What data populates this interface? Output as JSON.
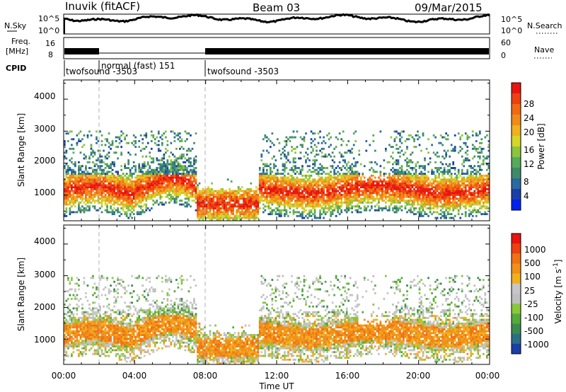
{
  "header": {
    "station": "Inuvik (fitACF)",
    "beam": "Beam 03",
    "date": "09/Mar/2015"
  },
  "sky_panel": {
    "left_label": "N.Sky",
    "right_label": "N.Search",
    "left_ticks": [
      "10^5",
      "10^0"
    ],
    "right_ticks": [
      "10^5",
      "10^0"
    ]
  },
  "freq_panel": {
    "left_label_1": "Freq.",
    "left_label_2": "[MHz]",
    "right_label": "Nave",
    "left_ticks": [
      "16",
      "8"
    ],
    "right_ticks": [
      "60",
      "0"
    ]
  },
  "cpid": {
    "label": "CPID",
    "segments": [
      {
        "start": 0.0,
        "end": 2.0,
        "text": "twofsound -3503"
      },
      {
        "start": 2.0,
        "end": 8.0,
        "text": "normal (fast) 151"
      },
      {
        "start": 8.0,
        "end": 24.0,
        "text": "twofsound -3503"
      }
    ]
  },
  "chart_data": [
    {
      "type": "heatmap",
      "name": "power",
      "ylabel": "Slant Range [km]",
      "xlim": [
        0,
        24
      ],
      "ylim": [
        200,
        4600
      ],
      "yticks": [
        "1000",
        "2000",
        "3000",
        "4000"
      ],
      "colorbar": {
        "label": "Power [dB]",
        "ticks": [
          "4",
          "8",
          "12",
          "16",
          "20",
          "24",
          "28"
        ],
        "colors": [
          "#0022ee",
          "#1b3fa8",
          "#2a6aa0",
          "#3f8a6a",
          "#56aa5a",
          "#8cc43c",
          "#d4d62a",
          "#f0b020",
          "#f08a1a",
          "#f06a14",
          "#ee4010",
          "#e81410"
        ]
      }
    },
    {
      "type": "heatmap",
      "name": "velocity",
      "xlabel": "Time UT",
      "ylabel": "Slant Range [km]",
      "xlim": [
        0,
        24
      ],
      "ylim": [
        200,
        4600
      ],
      "xticks": [
        "00:00",
        "04:00",
        "08:00",
        "12:00",
        "16:00",
        "20:00",
        "00:00"
      ],
      "yticks": [
        "1000",
        "2000",
        "3000",
        "4000"
      ],
      "colorbar": {
        "label": "Velocity [m s",
        "label_exp": "-1",
        "label_close": "]",
        "ticks": [
          "1000",
          "500",
          "100",
          "25",
          "-25",
          "-100",
          "-500",
          "-1000"
        ],
        "colors": [
          "#1b3fa8",
          "#2a6f86",
          "#3c8a50",
          "#56aa3a",
          "#88c83a",
          "#bfbfbf",
          "#c6c6c6",
          "#f0b020",
          "#f09018",
          "#f07014",
          "#ee4010",
          "#e81410"
        ]
      }
    }
  ],
  "colors": {
    "dashed": "#b0b0b0",
    "ground": "#666666"
  }
}
